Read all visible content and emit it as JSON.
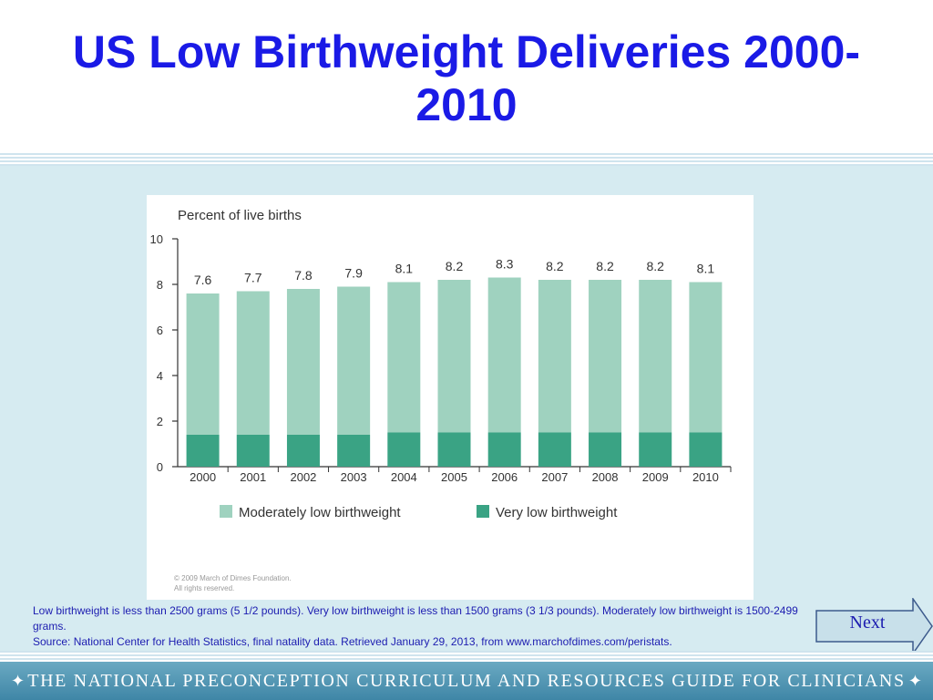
{
  "slide": {
    "title": "US Low Birthweight Deliveries 2000-2010",
    "caption_line1": "Low birthweight is less than 2500 grams (5 1/2 pounds). Very low birthweight is less than 1500 grams (3 1/3 pounds). Moderately low birthweight is 1500-2499 grams.",
    "caption_line2": "Source: National Center for Health Statistics, final natality data. Retrieved January 29, 2013, from www.marchofdimes.com/peristats.",
    "next_label": "Next",
    "footer_text": "THE NATIONAL PRECONCEPTION CURRICULUM AND RESOURCES GUIDE FOR CLINICIANS",
    "footer_star": "✦"
  },
  "chart_data": {
    "type": "bar",
    "stacked": true,
    "title": "Percent of live births",
    "categories": [
      "2000",
      "2001",
      "2002",
      "2003",
      "2004",
      "2005",
      "2006",
      "2007",
      "2008",
      "2009",
      "2010"
    ],
    "totals": [
      7.6,
      7.7,
      7.8,
      7.9,
      8.1,
      8.2,
      8.3,
      8.2,
      8.2,
      8.2,
      8.1
    ],
    "total_labels": [
      "7.6",
      "7.7",
      "7.8",
      "7.9",
      "8.1",
      "8.2",
      "8.3",
      "8.2",
      "8.2",
      "8.2",
      "8.1"
    ],
    "series": [
      {
        "name": "Very low birthweight",
        "values": [
          1.4,
          1.4,
          1.4,
          1.4,
          1.5,
          1.5,
          1.5,
          1.5,
          1.5,
          1.5,
          1.5
        ],
        "color": "#3aa384"
      },
      {
        "name": "Moderately low birthweight",
        "values": [
          6.2,
          6.3,
          6.4,
          6.5,
          6.6,
          6.7,
          6.8,
          6.7,
          6.7,
          6.7,
          6.6
        ],
        "color": "#9fd2bf"
      }
    ],
    "legend": [
      "Moderately low birthweight",
      "Very low birthweight"
    ],
    "legend_position": "bottom",
    "y_ticks": [
      "0",
      "2",
      "4",
      "6",
      "8",
      "10"
    ],
    "ylim": [
      0,
      10
    ],
    "grid": false,
    "copyright_line1": "© 2009 March of Dimes Foundation.",
    "copyright_line2": "All rights reserved."
  },
  "colors": {
    "title": "#1a1ae6",
    "caption": "#1c1cb0",
    "content_background": "#d6ebf1",
    "footer": "#4a90b0"
  }
}
